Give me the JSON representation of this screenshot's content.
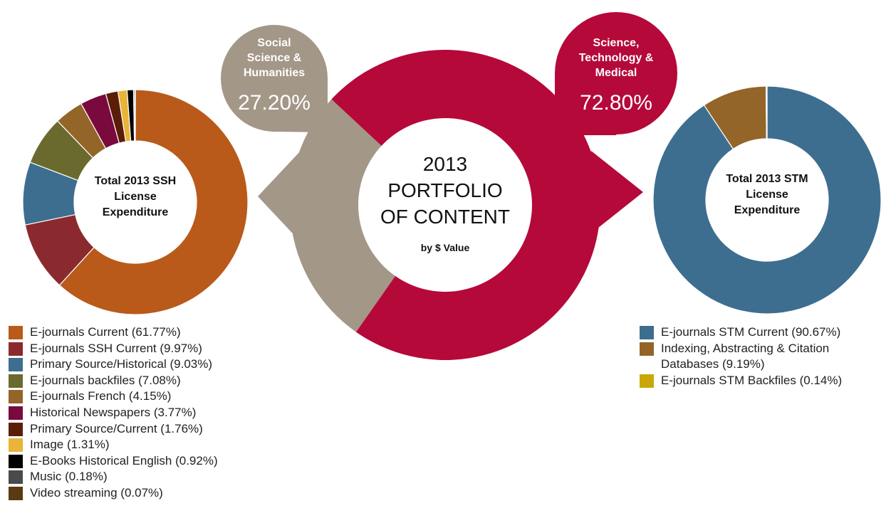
{
  "chart_data": [
    {
      "type": "donut",
      "title": "2013 PORTFOLIO OF CONTENT",
      "subtitle": "by $ Value",
      "categories": [
        "Social Science & Humanities",
        "Science, Technology & Medical"
      ],
      "values": [
        27.2,
        72.8
      ],
      "value_labels": [
        "27.20%",
        "72.80%"
      ],
      "colors": [
        "#a39788",
        "#b5093a"
      ]
    },
    {
      "type": "donut",
      "title": "Total 2013 SSH License Expenditure",
      "categories": [
        "E-journals Current",
        "E-journals SSH Current",
        "Primary Source/Historical",
        "E-journals backfiles",
        "E-journals French",
        "Historical Newspapers",
        "Primary Source/Current",
        "Image",
        "E-Books Historical English",
        "Music",
        "Video streaming"
      ],
      "values": [
        61.77,
        9.97,
        9.03,
        7.08,
        4.15,
        3.77,
        1.76,
        1.31,
        0.92,
        0.18,
        0.07
      ],
      "value_labels": [
        "(61.77%)",
        "(9.97%)",
        "(9.03%)",
        "(7.08%)",
        "(4.15%)",
        "(3.77%)",
        "(1.76%)",
        "(1.31%)",
        "(0.92%)",
        "(0.18%)",
        "(0.07%)"
      ],
      "colors": [
        "#b95a1a",
        "#8b2a2e",
        "#3d6e90",
        "#6a6a2e",
        "#946528",
        "#7a0a3e",
        "#5a1e08",
        "#e8b43a",
        "#000000",
        "#4a4a4a",
        "#5a3a10"
      ]
    },
    {
      "type": "donut",
      "title": "Total 2013 STM License Expenditure",
      "categories": [
        "E-journals STM Current",
        "Indexing, Abstracting & Citation Databases",
        "E-journals STM Backfiles"
      ],
      "values": [
        90.67,
        9.19,
        0.14
      ],
      "value_labels": [
        "(90.67%)",
        "(9.19%)",
        "(0.14%)"
      ],
      "colors": [
        "#3d6e90",
        "#946528",
        "#c8a808"
      ]
    }
  ]
}
